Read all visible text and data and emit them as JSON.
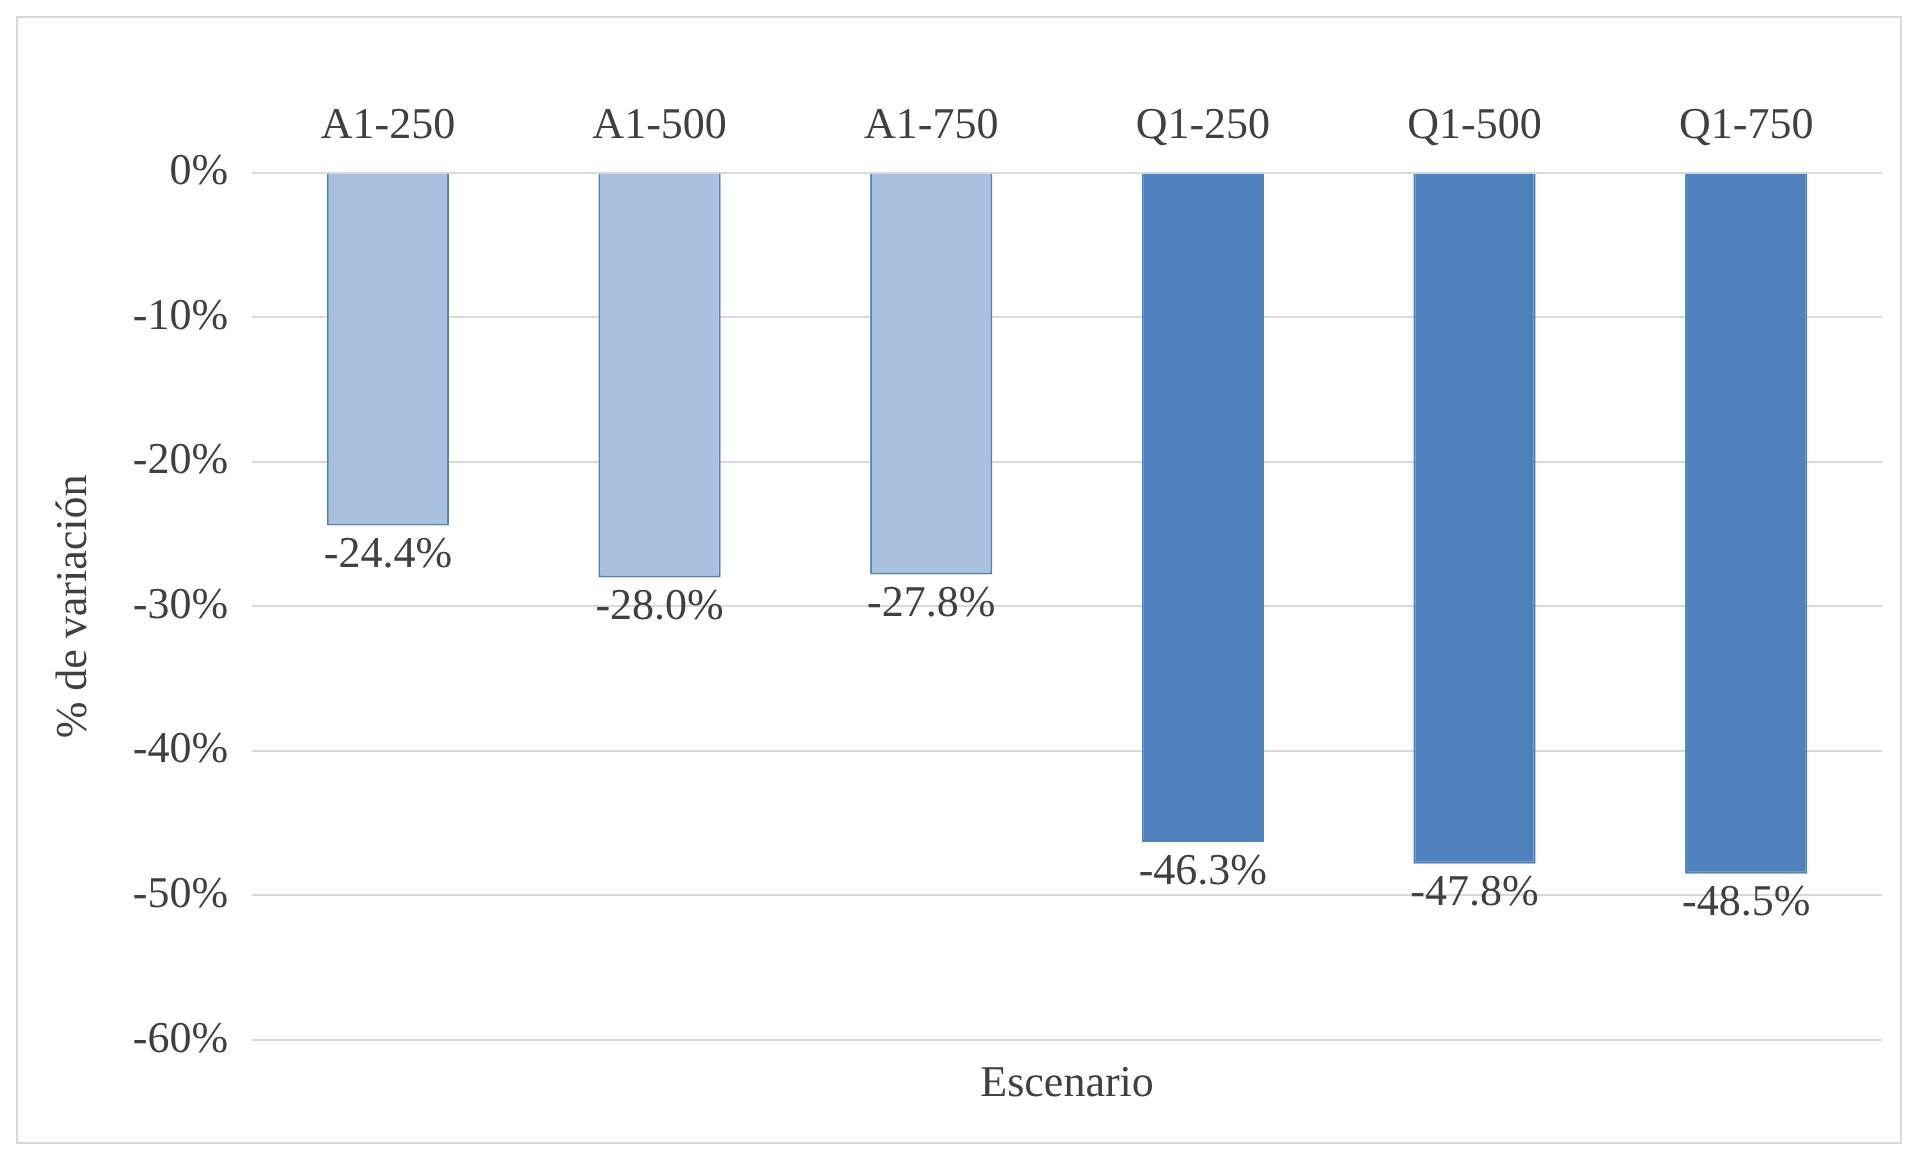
{
  "chart_data": {
    "type": "bar",
    "xlabel": "Escenario",
    "ylabel": "% de variación",
    "categories": [
      "A1-250",
      "A1-500",
      "A1-750",
      "Q1-250",
      "Q1-500",
      "Q1-750"
    ],
    "values": [
      -24.4,
      -28.0,
      -27.8,
      -46.3,
      -47.8,
      -48.5
    ],
    "colors": [
      "#a9c0de",
      "#a9c0de",
      "#a9c0de",
      "#4f81bd",
      "#4f81bd",
      "#4f81bd"
    ],
    "ylim": [
      -60,
      0
    ],
    "yticks": [
      {
        "value": 0,
        "label": "0%"
      },
      {
        "value": -10,
        "label": "-10%"
      },
      {
        "value": -20,
        "label": "-20%"
      },
      {
        "value": -30,
        "label": "-30%"
      },
      {
        "value": -40,
        "label": "-40%"
      },
      {
        "value": -50,
        "label": "-50%"
      },
      {
        "value": -60,
        "label": "-60%"
      }
    ],
    "value_labels": [
      "-24.4%",
      "-28.0%",
      "-27.8%",
      "-46.3%",
      "-47.8%",
      "-48.5%"
    ],
    "grid": "y",
    "legend": false
  }
}
